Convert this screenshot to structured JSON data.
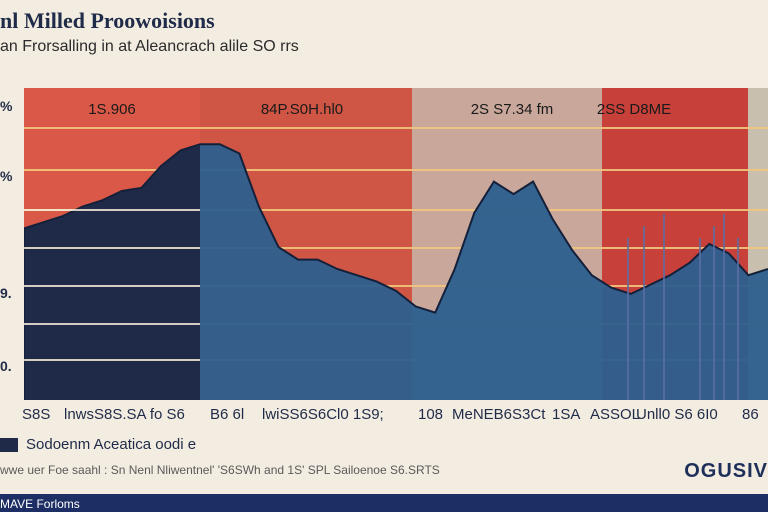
{
  "header": {
    "title": "nl Milled Proowoisions",
    "subtitle": "an Frorsalling in at Aleancrach alile SO rrs"
  },
  "legend": {
    "label": "Sodoenm Aceatica oodi e",
    "color": "#1e2a48"
  },
  "footnote": "wwe uer Foe saahl : Sn Nenl Nliwentnel' 'S6SWh and 1S' SPL Sailoenoe S6.SRTS",
  "brand": "OGUSIV",
  "footer": {
    "text": "MAVE Forloms"
  },
  "chart_data": {
    "type": "area",
    "title": "nl Milled Proowoisions",
    "subtitle": "an Frorsalling in at Aleancrach alile SO rrs",
    "y_tick_labels": [
      "%",
      "%",
      "9.",
      "0."
    ],
    "x_tick_labels": [
      "S8S",
      "lnwsS8S.SA fo S6",
      "B6 6l",
      "lwiSS6S6Cl0 1S9;",
      "108",
      "MeNEB6S3Ct",
      "1SA",
      "ASSOL",
      "Unll0 S6 6I0",
      "86"
    ],
    "band_labels": [
      "1S.906",
      "84P.S0H.hl0",
      "2S S7.34 fm",
      "2SS D8ME"
    ],
    "series": [
      {
        "name": "Sodoenm Aceatica oodi e",
        "values": [
          0.55,
          0.57,
          0.59,
          0.62,
          0.64,
          0.67,
          0.68,
          0.75,
          0.8,
          0.82,
          0.82,
          0.79,
          0.62,
          0.49,
          0.45,
          0.45,
          0.42,
          0.4,
          0.38,
          0.35,
          0.3,
          0.28,
          0.42,
          0.6,
          0.7,
          0.66,
          0.7,
          0.58,
          0.48,
          0.4,
          0.36,
          0.34,
          0.37,
          0.4,
          0.44,
          0.5,
          0.47,
          0.4,
          0.42
        ]
      }
    ],
    "ylim": [
      0,
      1
    ],
    "band_colors": [
      "#d95847",
      "#cf5544",
      "#c9a79b",
      "#c8403a"
    ],
    "colors": {
      "area_dark": "#1e2a48",
      "area_blue": "#2d5f8f",
      "gridline": "#f2c77d"
    },
    "legend_position": "bottom-left",
    "grid": true
  }
}
